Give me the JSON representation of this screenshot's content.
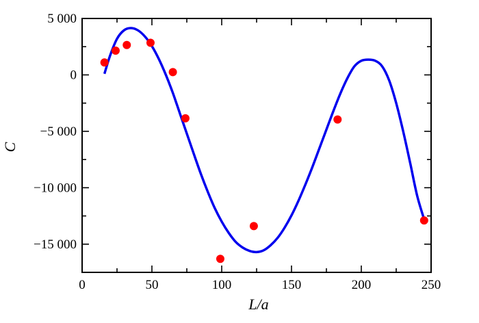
{
  "chart_data": {
    "type": "scatter",
    "title": "",
    "xlabel": "L/a",
    "ylabel": "C",
    "xlim": [
      0,
      250
    ],
    "ylim": [
      -17500,
      5000
    ],
    "xticks": [
      0,
      50,
      100,
      150,
      200,
      250
    ],
    "xtick_labels": [
      "0",
      "50",
      "100",
      "150",
      "200",
      "250"
    ],
    "yticks": [
      5000,
      0,
      -5000,
      -10000,
      -15000
    ],
    "ytick_labels": [
      "5 000",
      "0",
      "−5 000",
      "−10 000",
      "−15 000"
    ],
    "grid": false,
    "colors": {
      "points": "#ff0000",
      "curve": "#0000ee",
      "axes": "#000000"
    },
    "series": [
      {
        "type": "scatter",
        "x": [
          16,
          24,
          32,
          49,
          65,
          74,
          99,
          123,
          183,
          245
        ],
        "y": [
          1100,
          2150,
          2650,
          2850,
          250,
          -3850,
          -16300,
          -13400,
          -3950,
          -12900
        ]
      },
      {
        "type": "line",
        "x": [
          16,
          20,
          25,
          30,
          35,
          40,
          45,
          50,
          55,
          60,
          65,
          70,
          75,
          80,
          85,
          90,
          95,
          100,
          105,
          110,
          115,
          120,
          125,
          130,
          135,
          140,
          145,
          150,
          155,
          160,
          165,
          170,
          175,
          180,
          185,
          190,
          195,
          200,
          205,
          210,
          215,
          220,
          225,
          230,
          235,
          240,
          245
        ],
        "y": [
          100,
          1700,
          3200,
          3950,
          4150,
          3950,
          3400,
          2550,
          1400,
          0,
          -1600,
          -3400,
          -5200,
          -7000,
          -8750,
          -10350,
          -11800,
          -13000,
          -14000,
          -14800,
          -15300,
          -15600,
          -15700,
          -15550,
          -15100,
          -14450,
          -13550,
          -12450,
          -11150,
          -9700,
          -8150,
          -6500,
          -4850,
          -3200,
          -1650,
          -300,
          750,
          1250,
          1350,
          1250,
          750,
          -500,
          -2500,
          -5000,
          -7800,
          -10700,
          -12800
        ]
      }
    ]
  }
}
